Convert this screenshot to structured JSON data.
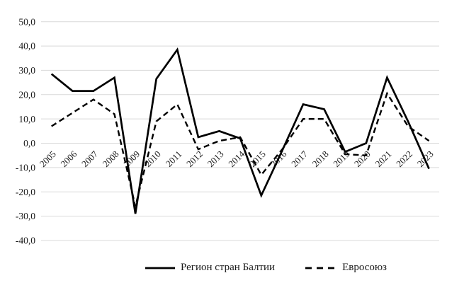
{
  "chart_data": {
    "type": "line",
    "title": "",
    "xlabel": "",
    "ylabel": "",
    "categories": [
      "2005",
      "2006",
      "2007",
      "2008",
      "2009",
      "2010",
      "2011",
      "2012",
      "2013",
      "2014",
      "2015",
      "2016",
      "2017",
      "2018",
      "2019",
      "2020",
      "2021",
      "2022",
      "2023"
    ],
    "series": [
      {
        "name": "Регион стран Балтии",
        "style": "solid",
        "values": [
          28.5,
          21.5,
          21.5,
          27,
          -29,
          26.5,
          38.5,
          2.5,
          5,
          2,
          -21.5,
          -3,
          16,
          14,
          -3.5,
          0,
          27,
          9,
          -10.5
        ]
      },
      {
        "name": "Евросоюз",
        "style": "dashed",
        "values": [
          7,
          12.5,
          18,
          12,
          -26,
          9,
          16,
          -2.5,
          1,
          2.5,
          -13,
          -2.5,
          10,
          10,
          -4.5,
          -5,
          20.5,
          7,
          1
        ]
      }
    ],
    "ylim": [
      -40,
      50
    ],
    "yticks": {
      "values": [
        50,
        40,
        30,
        20,
        10,
        0,
        -10,
        -20,
        -30,
        -40
      ],
      "labels": [
        "50,0",
        "40,0",
        "30,0",
        "20,0",
        "10,0",
        "0,0",
        "-10,0",
        "-20,0",
        "-30,0",
        "-40,0"
      ]
    },
    "grid": "horizontal",
    "legend_position": "bottom",
    "line_color": "#000000",
    "gridline_color": "#d9d9d9",
    "text_color": "#1a1a1a"
  }
}
